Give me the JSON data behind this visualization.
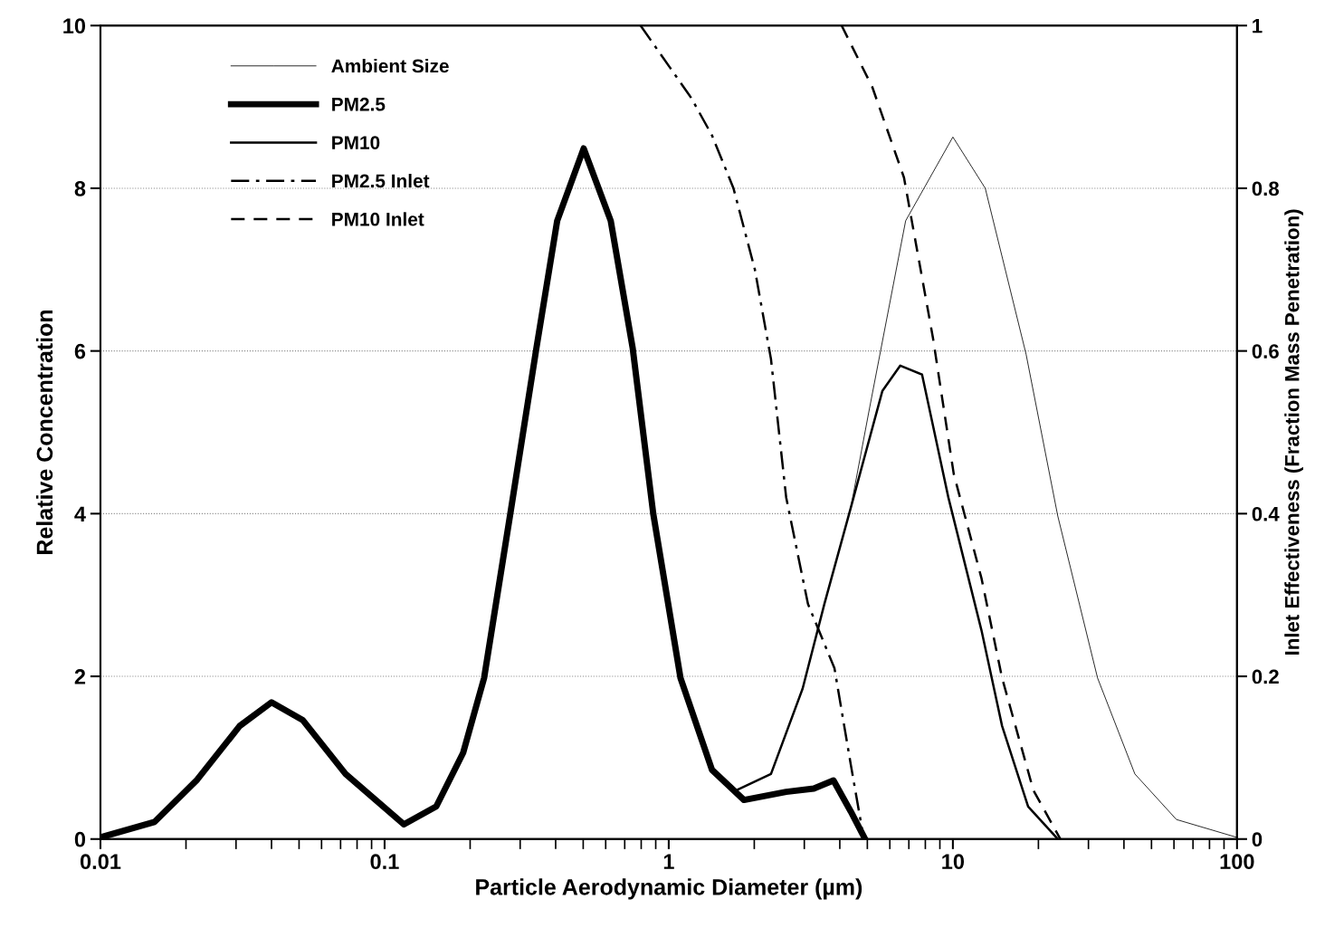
{
  "chart_data": {
    "type": "line",
    "xlabel": "Particle Aerodynamic Diameter (µm)",
    "ylabel": "Relative Concentration",
    "y2label": "Inlet Effectiveness (Fraction Mass Penetration)",
    "log": "x",
    "xlim": [
      0.01,
      100
    ],
    "xticks": [
      0.01,
      {
        "value": 0.02,
        "label": null
      },
      {
        "value": 0.03,
        "label": null
      },
      {
        "value": 0.04,
        "label": null
      },
      {
        "value": 0.05,
        "label": null
      },
      {
        "value": 0.06,
        "label": null
      },
      {
        "value": 0.07,
        "label": null
      },
      {
        "value": 0.08,
        "label": null
      },
      {
        "value": 0.09,
        "label": null
      },
      0.1,
      {
        "value": 0.2,
        "label": null
      },
      {
        "value": 0.3,
        "label": null
      },
      {
        "value": 0.4,
        "label": null
      },
      {
        "value": 0.5,
        "label": null
      },
      {
        "value": 0.6,
        "label": null
      },
      {
        "value": 0.7,
        "label": null
      },
      {
        "value": 0.8,
        "label": null
      },
      {
        "value": 0.9,
        "label": null
      },
      1,
      {
        "value": 2,
        "label": null
      },
      {
        "value": 3,
        "label": null
      },
      {
        "value": 4,
        "label": null
      },
      {
        "value": 5,
        "label": null
      },
      {
        "value": 6,
        "label": null
      },
      {
        "value": 7,
        "label": null
      },
      {
        "value": 8,
        "label": null
      },
      {
        "value": 9,
        "label": null
      },
      10,
      {
        "value": 20,
        "label": null
      },
      {
        "value": 30,
        "label": null
      },
      {
        "value": 40,
        "label": null
      },
      {
        "value": 50,
        "label": null
      },
      {
        "value": 60,
        "label": null
      },
      {
        "value": 70,
        "label": null
      },
      {
        "value": 80,
        "label": null
      },
      {
        "value": 90,
        "label": null
      },
      100
    ],
    "ylim": [
      0,
      10
    ],
    "yticks": [
      0,
      2,
      4,
      6,
      8,
      10
    ],
    "y2lim": [
      0,
      1
    ],
    "y2ticks": [
      0,
      0.2,
      0.4,
      0.6,
      0.8,
      1
    ],
    "grid": "y",
    "legend": "top left",
    "series": [
      {
        "name": "Ambient Size",
        "color": "#000000",
        "line_style": "solid",
        "x": [
          4.37,
          5.06,
          6.82,
          10,
          13.0,
          18.1,
          23.4,
          32.3,
          43.7,
          61.2,
          100
        ],
        "values": [
          4.07,
          5.25,
          7.6,
          8.63,
          8.0,
          5.96,
          3.97,
          1.98,
          0.8,
          0.24,
          0.02
        ]
      },
      {
        "name": "PM2.5",
        "color": "#000000",
        "line_style": "solid",
        "x": [
          0.01,
          0.0155,
          0.0219,
          0.0309,
          0.04,
          0.0516,
          0.0729,
          0.117,
          0.152,
          0.189,
          0.224,
          0.277,
          0.342,
          0.405,
          0.502,
          0.625,
          0.747,
          0.882,
          1.1,
          1.42,
          1.84,
          2.59,
          3.24,
          3.8,
          4.37,
          4.91
        ],
        "values": [
          0.02,
          0.21,
          0.73,
          1.39,
          1.68,
          1.46,
          0.8,
          0.18,
          0.4,
          1.06,
          1.98,
          4.0,
          6.03,
          7.6,
          8.49,
          7.6,
          6.03,
          4.0,
          1.98,
          0.85,
          0.48,
          0.58,
          0.62,
          0.72,
          0.34,
          0
        ]
      },
      {
        "name": "PM10",
        "color": "#000000",
        "line_style": "solid",
        "x": [
          1.42,
          1.73,
          2.29,
          2.96,
          3.53,
          4.37,
          5.65,
          6.53,
          7.79,
          9.64,
          12.6,
          14.9,
          18.4,
          23.4
        ],
        "values": [
          0.85,
          0.6,
          0.8,
          1.85,
          2.89,
          4.07,
          5.51,
          5.82,
          5.71,
          4.2,
          2.57,
          1.39,
          0.4,
          0
        ]
      },
      {
        "name": "PM2.5 Inlet",
        "color": "#000000",
        "line_style": "dashdot",
        "axis": "y2",
        "x": [
          0.796,
          1.2,
          1.42,
          1.69,
          2.01,
          2.29,
          2.59,
          3.09,
          3.83,
          4.37,
          4.86
        ],
        "values": [
          1.0,
          0.911,
          0.865,
          0.8,
          0.7,
          0.59,
          0.42,
          0.289,
          0.21,
          0.092,
          0
        ]
      },
      {
        "name": "PM10 Inlet",
        "color": "#000000",
        "line_style": "dashed",
        "axis": "y2",
        "x": [
          4.06,
          5.21,
          6.73,
          8.51,
          10.07,
          12.6,
          14.9,
          19.2,
          23.9
        ],
        "values": [
          1.0,
          0.924,
          0.813,
          0.616,
          0.449,
          0.321,
          0.198,
          0.06,
          0
        ]
      }
    ]
  }
}
